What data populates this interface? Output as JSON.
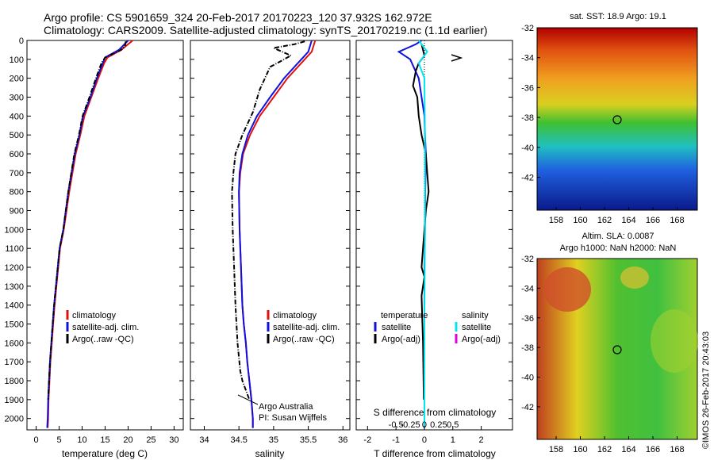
{
  "title": {
    "line1": "Argo profile: CS 5901659_324 20-Feb-2017 20170223_120 37.932S 162.972E",
    "line2": "Climatology: CARS2009. Satellite-adjusted climatology: synTS_20170219.nc (1.1d earlier)"
  },
  "side_label": "©IMOS 26-Feb-2017 20:43:03",
  "colors": {
    "climatology": "#e01010",
    "satellite": "#1010e0",
    "argo": "#000000",
    "sal_satellite": "#00e5f0",
    "sal_argo": "#e000e0"
  },
  "depth_ticks": [
    "0",
    "100",
    "200",
    "300",
    "400",
    "500",
    "600",
    "700",
    "800",
    "900",
    "1000",
    "1100",
    "1200",
    "1300",
    "1400",
    "1500",
    "1600",
    "1700",
    "1800",
    "1900",
    "2000"
  ],
  "chart_data": [
    {
      "type": "line",
      "panel": "temperature",
      "xlabel": "temperature (deg C)",
      "ylabel": "",
      "xlim": [
        -2,
        32
      ],
      "ylim": [
        2060,
        0
      ],
      "xticks": [
        0,
        5,
        10,
        15,
        20,
        25,
        30
      ],
      "xtick_labels": [
        "0",
        "5",
        "10",
        "15",
        "20",
        "25",
        "30"
      ],
      "legend": {
        "placement": "lower-center",
        "entries": [
          "climatology",
          "satellite-adj. clim.",
          "Argo(..raw -QC)"
        ]
      },
      "series": [
        {
          "name": "climatology",
          "color": "climatology",
          "x": [
            21,
            18.5,
            15.5,
            14.8,
            13.5,
            12,
            10.5,
            9.6,
            8.6,
            7.2,
            6.0,
            5.2,
            4.8,
            4.4,
            4.0,
            3.7,
            3.4,
            3.1,
            2.9,
            2.7,
            2.6,
            2.5
          ],
          "y": [
            0,
            50,
            90,
            120,
            200,
            300,
            400,
            500,
            600,
            800,
            1000,
            1100,
            1200,
            1300,
            1400,
            1500,
            1600,
            1700,
            1800,
            1900,
            2000,
            2050
          ]
        },
        {
          "name": "satellite-adj. clim.",
          "color": "satellite",
          "x": [
            20,
            18,
            15,
            14.5,
            13.2,
            11.8,
            10.2,
            9.4,
            8.4,
            7.0,
            5.9,
            5.1,
            4.7,
            4.3,
            3.9,
            3.6,
            3.3,
            3.0,
            2.8,
            2.6,
            2.5,
            2.4
          ],
          "y": [
            0,
            50,
            90,
            120,
            200,
            300,
            400,
            500,
            600,
            800,
            1000,
            1100,
            1200,
            1300,
            1400,
            1500,
            1600,
            1700,
            1800,
            1900,
            2000,
            2050
          ]
        },
        {
          "name": "Argo(..raw -QC)",
          "color": "argo",
          "x": [
            19.5,
            19.3,
            18.5,
            15,
            14.2,
            13.0,
            11.6,
            10.1,
            9.3,
            8.3,
            7.0,
            5.9,
            5.1,
            4.7,
            4.3,
            3.9,
            3.6,
            3.3,
            3.0,
            2.8,
            2.6
          ],
          "y": [
            5,
            30,
            50,
            90,
            120,
            200,
            300,
            400,
            500,
            600,
            800,
            1000,
            1100,
            1200,
            1300,
            1400,
            1500,
            1600,
            1700,
            1800,
            1900
          ]
        }
      ]
    },
    {
      "type": "line",
      "panel": "salinity",
      "xlabel": "salinity",
      "xlim": [
        33.8,
        36.1
      ],
      "ylim": [
        2060,
        0
      ],
      "xticks": [
        34,
        34.5,
        35,
        35.5,
        36
      ],
      "xtick_labels": [
        "34",
        "34.5",
        "35",
        "35.5",
        "36"
      ],
      "legend": {
        "placement": "lower-center",
        "entries": [
          "climatology",
          "satellite-adj. clim.",
          "Argo(..raw -QC)"
        ]
      },
      "annotation": [
        "Argo Australia",
        "PI: Susan Wijffels"
      ],
      "series": [
        {
          "name": "climatology",
          "color": "climatology",
          "x": [
            35.6,
            35.55,
            35.4,
            35.2,
            35.0,
            34.8,
            34.66,
            34.56,
            34.52,
            34.5,
            34.51,
            34.53,
            34.55,
            34.57,
            34.6,
            34.62,
            34.65,
            34.68,
            34.7,
            34.7
          ],
          "y": [
            0,
            60,
            120,
            200,
            300,
            400,
            500,
            600,
            700,
            800,
            1000,
            1200,
            1400,
            1500,
            1600,
            1700,
            1800,
            1900,
            2000,
            2050
          ]
        },
        {
          "name": "satellite-adj. clim.",
          "color": "satellite",
          "x": [
            35.55,
            35.5,
            35.35,
            35.15,
            34.95,
            34.76,
            34.63,
            34.55,
            34.51,
            34.5,
            34.51,
            34.53,
            34.55,
            34.57,
            34.6,
            34.62,
            34.65,
            34.68,
            34.7,
            34.7
          ],
          "y": [
            0,
            60,
            120,
            200,
            300,
            400,
            500,
            600,
            700,
            800,
            1000,
            1200,
            1400,
            1500,
            1600,
            1700,
            1800,
            1900,
            2000,
            2050
          ]
        },
        {
          "name": "Argo(..raw -QC)",
          "color": "argo",
          "x": [
            35.45,
            35.3,
            35.0,
            35.25,
            34.95,
            34.8,
            34.7,
            34.55,
            34.45,
            34.42,
            34.4,
            34.41,
            34.43,
            34.45,
            34.48,
            34.52,
            34.55,
            34.6,
            34.65
          ],
          "y": [
            5,
            20,
            40,
            80,
            140,
            260,
            380,
            500,
            600,
            700,
            800,
            1000,
            1200,
            1400,
            1600,
            1750,
            1800,
            1850,
            1900
          ]
        }
      ]
    },
    {
      "type": "line",
      "panel": "difference",
      "xlabel_bottom": "T difference from climatology",
      "xlabel_top": "S difference from climatology",
      "xlim": [
        -2.4,
        3.1
      ],
      "ylim": [
        2060,
        0
      ],
      "xticks": [
        -2,
        -1,
        0,
        1,
        2
      ],
      "xtick_labels": [
        "-2",
        "-1",
        "0",
        "1",
        "2"
      ],
      "sticks": [
        -1,
        -0.5,
        0,
        0.5,
        1
      ],
      "stick_labels": [
        "-0.5",
        "-0.25",
        "0",
        "0.25",
        "0.5"
      ],
      "legend": {
        "placement": "lower-center",
        "col1_title": "temperature",
        "col2_title": "salinity",
        "entries": [
          "satellite",
          "Argo(-adj)",
          "satellite",
          "Argo(-adj)"
        ]
      },
      "series": [
        {
          "name": "satellite",
          "color": "satellite",
          "x": [
            -0.1,
            -0.3,
            -0.9,
            -0.5,
            -0.2,
            -0.1,
            0.0,
            0.02,
            0.05,
            0.03,
            0.02,
            0.0,
            0.0,
            0.0,
            0.0
          ],
          "y": [
            0,
            20,
            60,
            100,
            200,
            300,
            400,
            500,
            600,
            800,
            1000,
            1200,
            1500,
            1800,
            2050
          ]
        },
        {
          "name": "Argo(-adj)",
          "color": "argo",
          "x": [
            -0.1,
            0.0,
            -0.2,
            -0.3,
            -0.4,
            -0.25,
            -0.2,
            -0.1,
            0.05,
            0.1,
            0.15,
            0.05,
            -0.1,
            0.0,
            -0.1,
            -0.05,
            -0.02
          ],
          "y": [
            20,
            80,
            120,
            160,
            240,
            300,
            400,
            500,
            600,
            700,
            800,
            900,
            1200,
            1250,
            1350,
            1600,
            1900
          ]
        },
        {
          "name": "satellite",
          "color": "sal_satellite",
          "x": [
            -0.2,
            0.1,
            -0.2,
            0.0,
            0.02,
            0.02,
            0.0,
            0.0
          ],
          "y": [
            0,
            60,
            120,
            200,
            500,
            1000,
            1500,
            2050
          ]
        }
      ]
    }
  ],
  "maps": {
    "sst": {
      "title": "sat. SST: 18.9  Argo: 19.1",
      "yticks": [
        "-32",
        "-34",
        "-36",
        "-38",
        "-40",
        "-42"
      ],
      "xticks": [
        "158",
        "160",
        "162",
        "164",
        "166",
        "168"
      ]
    },
    "sla": {
      "title_line1": "Altim. SLA: 0.0087",
      "title_line2": "Argo h1000: NaN h2000: NaN",
      "yticks": [
        "-32",
        "-34",
        "-36",
        "-38",
        "-40",
        "-42"
      ],
      "xticks": [
        "158",
        "160",
        "162",
        "164",
        "166",
        "168"
      ]
    }
  }
}
